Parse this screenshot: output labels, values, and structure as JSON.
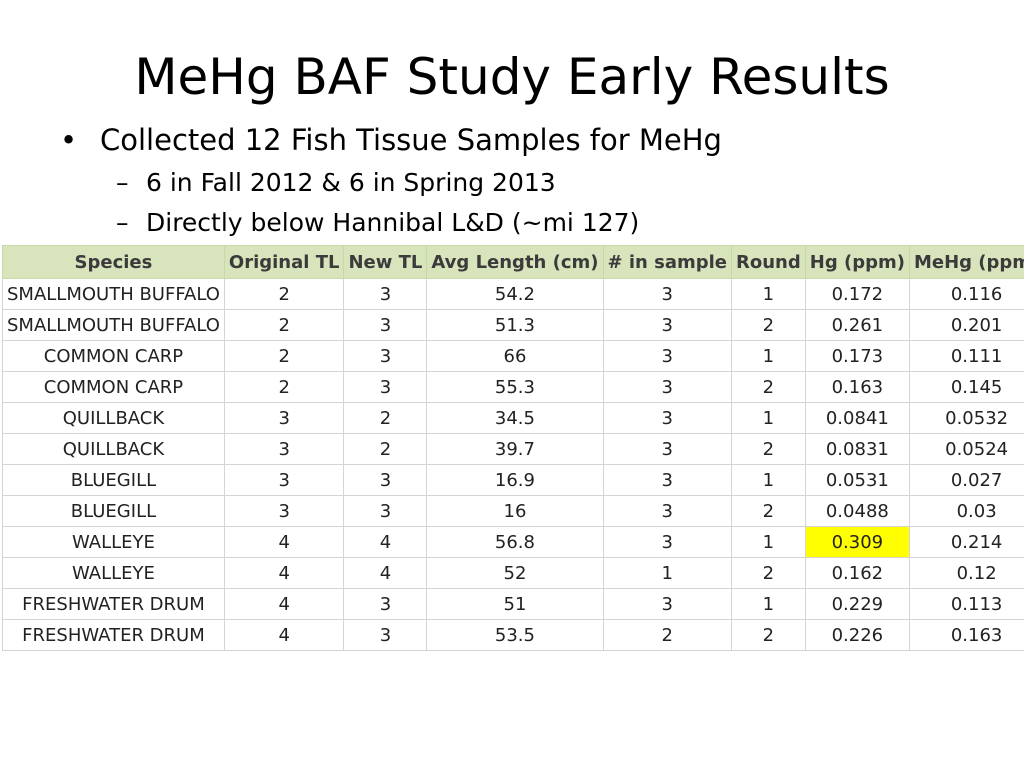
{
  "slide": {
    "title": "MeHg BAF Study Early Results",
    "bullet_main": "Collected 12 Fish Tissue Samples for MeHg",
    "sub_bullets": [
      "6 in Fall 2012 & 6 in Spring 2013",
      "Directly below Hannibal L&D (~mi 127)"
    ],
    "bullet_mark": "•",
    "sub_mark": "–"
  },
  "table": {
    "headers": [
      "Species",
      "Original TL",
      "New TL",
      "Avg Length (cm)",
      "# in sample",
      "Round",
      "Hg (ppm)",
      "MeHg (ppm)"
    ],
    "highlight_color": "#ffff00",
    "highlight_cell": {
      "row": 8,
      "col": 6
    },
    "rows": [
      [
        "SMALLMOUTH BUFFALO",
        "2",
        "3",
        "54.2",
        "3",
        "1",
        "0.172",
        "0.116"
      ],
      [
        "SMALLMOUTH BUFFALO",
        "2",
        "3",
        "51.3",
        "3",
        "2",
        "0.261",
        "0.201"
      ],
      [
        "COMMON CARP",
        "2",
        "3",
        "66",
        "3",
        "1",
        "0.173",
        "0.111"
      ],
      [
        "COMMON CARP",
        "2",
        "3",
        "55.3",
        "3",
        "2",
        "0.163",
        "0.145"
      ],
      [
        "QUILLBACK",
        "3",
        "2",
        "34.5",
        "3",
        "1",
        "0.0841",
        "0.0532"
      ],
      [
        "QUILLBACK",
        "3",
        "2",
        "39.7",
        "3",
        "2",
        "0.0831",
        "0.0524"
      ],
      [
        "BLUEGILL",
        "3",
        "3",
        "16.9",
        "3",
        "1",
        "0.0531",
        "0.027"
      ],
      [
        "BLUEGILL",
        "3",
        "3",
        "16",
        "3",
        "2",
        "0.0488",
        "0.03"
      ],
      [
        "WALLEYE",
        "4",
        "4",
        "56.8",
        "3",
        "1",
        "0.309",
        "0.214"
      ],
      [
        "WALLEYE",
        "4",
        "4",
        "52",
        "1",
        "2",
        "0.162",
        "0.12"
      ],
      [
        "FRESHWATER DRUM",
        "4",
        "3",
        "51",
        "3",
        "1",
        "0.229",
        "0.113"
      ],
      [
        "FRESHWATER DRUM",
        "4",
        "3",
        "53.5",
        "2",
        "2",
        "0.226",
        "0.163"
      ]
    ]
  }
}
